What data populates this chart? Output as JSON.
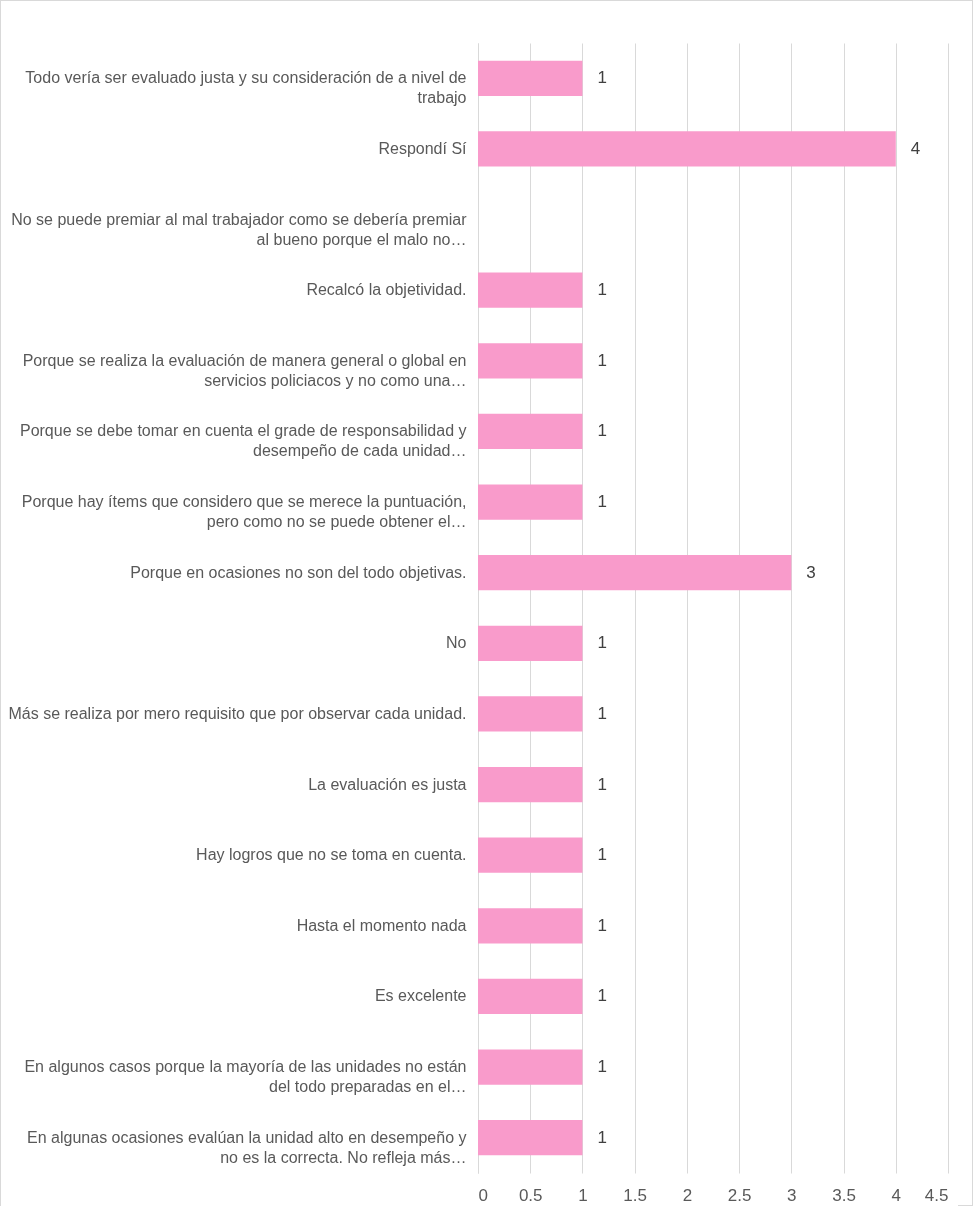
{
  "chart_data": {
    "type": "bar",
    "orientation": "horizontal",
    "categories": [
      "Todo vería ser evaluado justa y su consideración de a nivel de trabajo",
      "Respondí Sí",
      "No se puede premiar al mal trabajador como se debería premiar al bueno porque el malo no…",
      "Recalcó la objetividad.",
      "Porque se realiza la evaluación de manera general o global en servicios policiacos y no como una…",
      "Porque se debe tomar en cuenta el grade de responsabilidad y desempeño de cada unidad…",
      "Porque hay ítems que considero que se merece la puntuación, pero como no se puede obtener el…",
      "Porque en ocasiones no son del todo objetivas.",
      "No",
      "Más se realiza por mero requisito que por observar cada unidad.",
      "La evaluación es justa",
      "Hay logros que no se toma en cuenta.",
      "Hasta el momento nada",
      "Es excelente",
      "En algunos casos porque la mayoría de las unidades no están del todo preparadas en el…",
      "En algunas ocasiones evalúan la unidad alto en desempeño y no es la correcta. No refleja más…"
    ],
    "values": [
      1,
      4,
      null,
      1,
      1,
      1,
      1,
      3,
      1,
      1,
      1,
      1,
      1,
      1,
      1,
      1
    ],
    "color": "#f99bcb",
    "xlim": [
      0,
      4.5
    ],
    "xticks": [
      0,
      0.5,
      1,
      1.5,
      2,
      2.5,
      3,
      3.5,
      4,
      4.5
    ],
    "grid": "x",
    "data_labels": true
  }
}
